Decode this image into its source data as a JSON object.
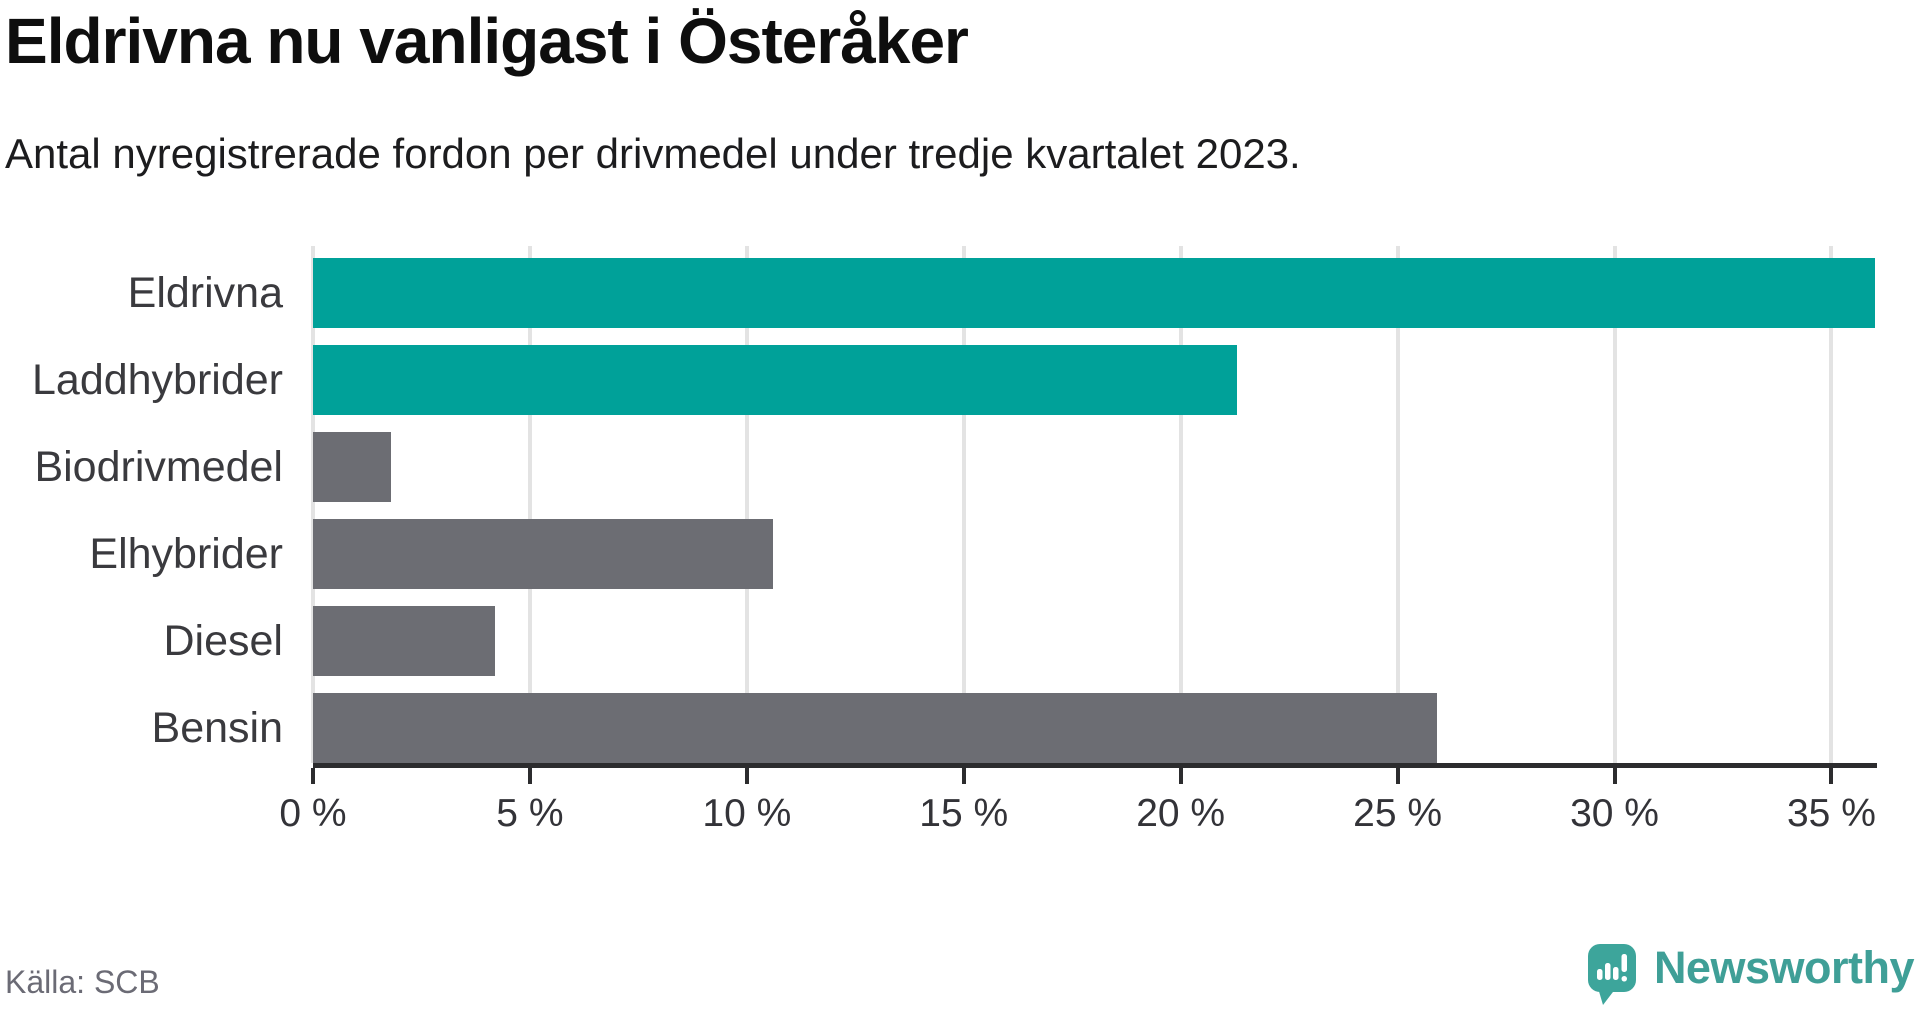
{
  "header": {
    "title": "Eldrivna nu vanligast i Österåker",
    "subtitle": "Antal nyregistrerade fordon per drivmedel under tredje kvartalet 2023."
  },
  "footer": {
    "source": "Källa: SCB",
    "brand": "Newsworthy"
  },
  "colors": {
    "highlight_bar": "#00a199",
    "default_bar": "#6c6d73",
    "grid": "#e3e3e3",
    "axis": "#2c2c2e",
    "logo_mark": "#3da59b",
    "logo_text": "#3f9f97"
  },
  "chart_data": {
    "type": "bar",
    "orientation": "horizontal",
    "title": "Eldrivna nu vanligast i Österåker",
    "subtitle": "Antal nyregistrerade fordon per drivmedel under tredje kvartalet 2023.",
    "categories": [
      "Eldrivna",
      "Laddhybrider",
      "Biodrivmedel",
      "Elhybrider",
      "Diesel",
      "Bensin"
    ],
    "values": [
      36.0,
      21.3,
      1.8,
      10.6,
      4.2,
      25.9
    ],
    "highlighted": [
      true,
      true,
      false,
      false,
      false,
      false
    ],
    "unit": "%",
    "xlim": [
      0,
      36.05
    ],
    "xticks": [
      0,
      5,
      10,
      15,
      20,
      25,
      30,
      35
    ],
    "xtick_labels": [
      "0 %",
      "5 %",
      "10 %",
      "15 %",
      "20 %",
      "25 %",
      "30 %",
      "35 %"
    ],
    "grid": true,
    "legend": false
  }
}
